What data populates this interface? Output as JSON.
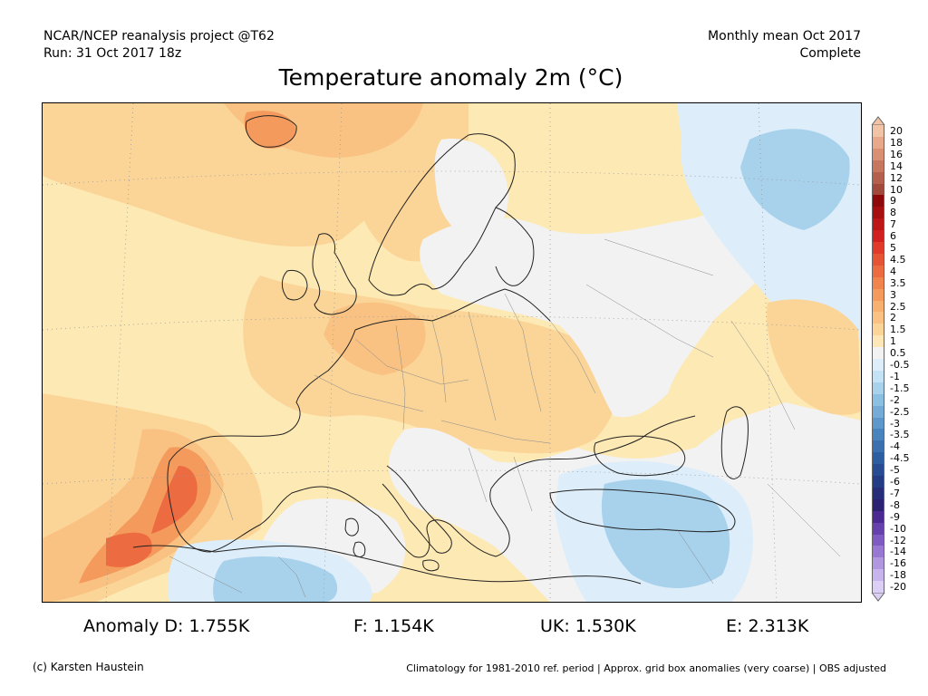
{
  "header": {
    "source_line1": "NCAR/NCEP reanalysis project @T62",
    "source_line2": "Run: 31 Oct 2017 18z",
    "period_line1": "Monthly mean Oct 2017",
    "period_line2": "Complete"
  },
  "title": "Temperature anomaly 2m (°C)",
  "colorbar": {
    "levels": [
      {
        "label": "20",
        "color": "#f2c4a6"
      },
      {
        "label": "18",
        "color": "#e8a98a"
      },
      {
        "label": "16",
        "color": "#d88f72"
      },
      {
        "label": "14",
        "color": "#c7775e"
      },
      {
        "label": "12",
        "color": "#b4604c"
      },
      {
        "label": "10",
        "color": "#a14a3c"
      },
      {
        "label": "9",
        "color": "#8e0a0a"
      },
      {
        "label": "8",
        "color": "#a60f0f"
      },
      {
        "label": "7",
        "color": "#bd1616"
      },
      {
        "label": "6",
        "color": "#d12020"
      },
      {
        "label": "5",
        "color": "#e03a2a"
      },
      {
        "label": "4.5",
        "color": "#e65436"
      },
      {
        "label": "4",
        "color": "#ec6b40"
      },
      {
        "label": "3.5",
        "color": "#f0844c"
      },
      {
        "label": "3",
        "color": "#f49a5c"
      },
      {
        "label": "2.5",
        "color": "#f7b070"
      },
      {
        "label": "2",
        "color": "#f9c282"
      },
      {
        "label": "1.5",
        "color": "#fbd598"
      },
      {
        "label": "1",
        "color": "#fde7b6"
      },
      {
        "label": "0.5",
        "color": "#f2f2f2"
      },
      {
        "label": "-0.5",
        "color": "#ddeefa"
      },
      {
        "label": "-1",
        "color": "#c4e2f5"
      },
      {
        "label": "-1.5",
        "color": "#a8d2ec"
      },
      {
        "label": "-2",
        "color": "#8cc0e2"
      },
      {
        "label": "-2.5",
        "color": "#74acd7"
      },
      {
        "label": "-3",
        "color": "#5e98cb"
      },
      {
        "label": "-3.5",
        "color": "#4a84be"
      },
      {
        "label": "-4",
        "color": "#3a70b0"
      },
      {
        "label": "-4.5",
        "color": "#2e5ea2"
      },
      {
        "label": "-5",
        "color": "#274c94"
      },
      {
        "label": "-6",
        "color": "#243c86"
      },
      {
        "label": "-7",
        "color": "#262e7a"
      },
      {
        "label": "-8",
        "color": "#2c2272"
      },
      {
        "label": "-9",
        "color": "#4a2a92"
      },
      {
        "label": "-10",
        "color": "#6641ad"
      },
      {
        "label": "-12",
        "color": "#7f5ac2"
      },
      {
        "label": "-14",
        "color": "#9878d3"
      },
      {
        "label": "-16",
        "color": "#b196e0"
      },
      {
        "label": "-18",
        "color": "#c8b4ec"
      },
      {
        "label": "-20",
        "color": "#dccff5"
      }
    ]
  },
  "anomalies": {
    "D": "Anomaly D: 1.755K",
    "F": "F: 1.154K",
    "UK": "UK: 1.530K",
    "E": "E: 2.313K"
  },
  "footer": {
    "credit": "(c) Karsten Haustein",
    "note": "Climatology for 1981-2010 ref. period | Approx. grid box anomalies (very coarse) | OBS adjusted"
  }
}
